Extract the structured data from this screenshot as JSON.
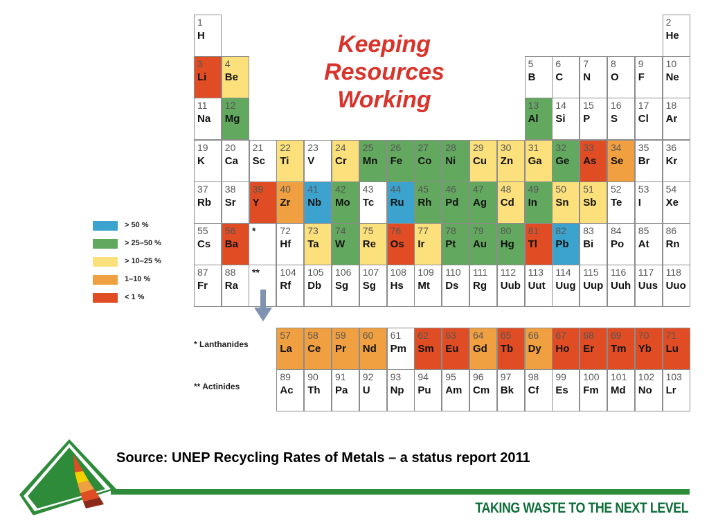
{
  "slide": {
    "title_lines": [
      "Keeping",
      "Resources",
      "Working"
    ],
    "source": "Source: UNEP Recycling Rates of Metals – a status report 2011",
    "tagline": "TAKING WASTE TO THE NEXT LEVEL"
  },
  "legend": [
    {
      "label": "> 50 %",
      "color": "#3ba3cd"
    },
    {
      "label": "> 25–50 %",
      "color": "#63a85f"
    },
    {
      "label": "> 10–25 %",
      "color": "#fbe07b"
    },
    {
      "label": "1–10 %",
      "color": "#f0a040"
    },
    {
      "label": "< 1 %",
      "color": "#e04d24"
    }
  ],
  "series_labels": {
    "lanthanides": "* Lanthanides",
    "actinides": "** Actinides"
  },
  "table_marks": {
    "lanthanide_mark": "*",
    "actinide_mark": "**"
  },
  "elements": [
    {
      "n": "1",
      "s": "H",
      "row": 1,
      "col": 1,
      "cat": null
    },
    {
      "n": "2",
      "s": "He",
      "row": 1,
      "col": 18,
      "cat": null
    },
    {
      "n": "3",
      "s": "Li",
      "row": 2,
      "col": 1,
      "cat": "lt1"
    },
    {
      "n": "4",
      "s": "Be",
      "row": 2,
      "col": 2,
      "cat": "10-25"
    },
    {
      "n": "5",
      "s": "B",
      "row": 2,
      "col": 13,
      "cat": null
    },
    {
      "n": "6",
      "s": "C",
      "row": 2,
      "col": 14,
      "cat": null
    },
    {
      "n": "7",
      "s": "N",
      "row": 2,
      "col": 15,
      "cat": null
    },
    {
      "n": "8",
      "s": "O",
      "row": 2,
      "col": 16,
      "cat": null
    },
    {
      "n": "9",
      "s": "F",
      "row": 2,
      "col": 17,
      "cat": null
    },
    {
      "n": "10",
      "s": "Ne",
      "row": 2,
      "col": 18,
      "cat": null
    },
    {
      "n": "11",
      "s": "Na",
      "row": 3,
      "col": 1,
      "cat": null
    },
    {
      "n": "12",
      "s": "Mg",
      "row": 3,
      "col": 2,
      "cat": "25-50"
    },
    {
      "n": "13",
      "s": "Al",
      "row": 3,
      "col": 13,
      "cat": "25-50"
    },
    {
      "n": "14",
      "s": "Si",
      "row": 3,
      "col": 14,
      "cat": null
    },
    {
      "n": "15",
      "s": "P",
      "row": 3,
      "col": 15,
      "cat": null
    },
    {
      "n": "16",
      "s": "S",
      "row": 3,
      "col": 16,
      "cat": null
    },
    {
      "n": "17",
      "s": "Cl",
      "row": 3,
      "col": 17,
      "cat": null
    },
    {
      "n": "18",
      "s": "Ar",
      "row": 3,
      "col": 18,
      "cat": null
    },
    {
      "n": "19",
      "s": "K",
      "row": 4,
      "col": 1,
      "cat": null
    },
    {
      "n": "20",
      "s": "Ca",
      "row": 4,
      "col": 2,
      "cat": null
    },
    {
      "n": "21",
      "s": "Sc",
      "row": 4,
      "col": 3,
      "cat": null
    },
    {
      "n": "22",
      "s": "Ti",
      "row": 4,
      "col": 4,
      "cat": "10-25"
    },
    {
      "n": "23",
      "s": "V",
      "row": 4,
      "col": 5,
      "cat": null
    },
    {
      "n": "24",
      "s": "Cr",
      "row": 4,
      "col": 6,
      "cat": "10-25"
    },
    {
      "n": "25",
      "s": "Mn",
      "row": 4,
      "col": 7,
      "cat": "25-50"
    },
    {
      "n": "26",
      "s": "Fe",
      "row": 4,
      "col": 8,
      "cat": "25-50"
    },
    {
      "n": "27",
      "s": "Co",
      "row": 4,
      "col": 9,
      "cat": "25-50"
    },
    {
      "n": "28",
      "s": "Ni",
      "row": 4,
      "col": 10,
      "cat": "25-50"
    },
    {
      "n": "29",
      "s": "Cu",
      "row": 4,
      "col": 11,
      "cat": "10-25"
    },
    {
      "n": "30",
      "s": "Zn",
      "row": 4,
      "col": 12,
      "cat": "10-25"
    },
    {
      "n": "31",
      "s": "Ga",
      "row": 4,
      "col": 13,
      "cat": "10-25"
    },
    {
      "n": "32",
      "s": "Ge",
      "row": 4,
      "col": 14,
      "cat": "25-50"
    },
    {
      "n": "33",
      "s": "As",
      "row": 4,
      "col": 15,
      "cat": "lt1"
    },
    {
      "n": "34",
      "s": "Se",
      "row": 4,
      "col": 16,
      "cat": "1-10"
    },
    {
      "n": "35",
      "s": "Br",
      "row": 4,
      "col": 17,
      "cat": null
    },
    {
      "n": "36",
      "s": "Kr",
      "row": 4,
      "col": 18,
      "cat": null
    },
    {
      "n": "37",
      "s": "Rb",
      "row": 5,
      "col": 1,
      "cat": null
    },
    {
      "n": "38",
      "s": "Sr",
      "row": 5,
      "col": 2,
      "cat": null
    },
    {
      "n": "39",
      "s": "Y",
      "row": 5,
      "col": 3,
      "cat": "lt1"
    },
    {
      "n": "40",
      "s": "Zr",
      "row": 5,
      "col": 4,
      "cat": "1-10"
    },
    {
      "n": "41",
      "s": "Nb",
      "row": 5,
      "col": 5,
      "cat": "gt50"
    },
    {
      "n": "42",
      "s": "Mo",
      "row": 5,
      "col": 6,
      "cat": "25-50"
    },
    {
      "n": "43",
      "s": "Tc",
      "row": 5,
      "col": 7,
      "cat": null
    },
    {
      "n": "44",
      "s": "Ru",
      "row": 5,
      "col": 8,
      "cat": "gt50"
    },
    {
      "n": "45",
      "s": "Rh",
      "row": 5,
      "col": 9,
      "cat": "25-50"
    },
    {
      "n": "46",
      "s": "Pd",
      "row": 5,
      "col": 10,
      "cat": "25-50"
    },
    {
      "n": "47",
      "s": "Ag",
      "row": 5,
      "col": 11,
      "cat": "25-50"
    },
    {
      "n": "48",
      "s": "Cd",
      "row": 5,
      "col": 12,
      "cat": "10-25"
    },
    {
      "n": "49",
      "s": "In",
      "row": 5,
      "col": 13,
      "cat": "25-50"
    },
    {
      "n": "50",
      "s": "Sn",
      "row": 5,
      "col": 14,
      "cat": "10-25"
    },
    {
      "n": "51",
      "s": "Sb",
      "row": 5,
      "col": 15,
      "cat": "10-25"
    },
    {
      "n": "52",
      "s": "Te",
      "row": 5,
      "col": 16,
      "cat": null
    },
    {
      "n": "53",
      "s": "I",
      "row": 5,
      "col": 17,
      "cat": null
    },
    {
      "n": "54",
      "s": "Xe",
      "row": 5,
      "col": 18,
      "cat": null
    },
    {
      "n": "55",
      "s": "Cs",
      "row": 6,
      "col": 1,
      "cat": null
    },
    {
      "n": "56",
      "s": "Ba",
      "row": 6,
      "col": 2,
      "cat": "lt1"
    },
    {
      "n": "72",
      "s": "Hf",
      "row": 6,
      "col": 4,
      "cat": null
    },
    {
      "n": "73",
      "s": "Ta",
      "row": 6,
      "col": 5,
      "cat": "10-25"
    },
    {
      "n": "74",
      "s": "W",
      "row": 6,
      "col": 6,
      "cat": "25-50"
    },
    {
      "n": "75",
      "s": "Re",
      "row": 6,
      "col": 7,
      "cat": "10-25"
    },
    {
      "n": "76",
      "s": "Os",
      "row": 6,
      "col": 8,
      "cat": "lt1"
    },
    {
      "n": "77",
      "s": "Ir",
      "row": 6,
      "col": 9,
      "cat": "10-25"
    },
    {
      "n": "78",
      "s": "Pt",
      "row": 6,
      "col": 10,
      "cat": "25-50"
    },
    {
      "n": "79",
      "s": "Au",
      "row": 6,
      "col": 11,
      "cat": "25-50"
    },
    {
      "n": "80",
      "s": "Hg",
      "row": 6,
      "col": 12,
      "cat": "25-50"
    },
    {
      "n": "81",
      "s": "Tl",
      "row": 6,
      "col": 13,
      "cat": "lt1"
    },
    {
      "n": "82",
      "s": "Pb",
      "row": 6,
      "col": 14,
      "cat": "gt50"
    },
    {
      "n": "83",
      "s": "Bi",
      "row": 6,
      "col": 15,
      "cat": null
    },
    {
      "n": "84",
      "s": "Po",
      "row": 6,
      "col": 16,
      "cat": null
    },
    {
      "n": "85",
      "s": "At",
      "row": 6,
      "col": 17,
      "cat": null
    },
    {
      "n": "86",
      "s": "Rn",
      "row": 6,
      "col": 18,
      "cat": null
    },
    {
      "n": "87",
      "s": "Fr",
      "row": 7,
      "col": 1,
      "cat": null
    },
    {
      "n": "88",
      "s": "Ra",
      "row": 7,
      "col": 2,
      "cat": null
    },
    {
      "n": "104",
      "s": "Rf",
      "row": 7,
      "col": 4,
      "cat": null
    },
    {
      "n": "105",
      "s": "Db",
      "row": 7,
      "col": 5,
      "cat": null
    },
    {
      "n": "106",
      "s": "Sg",
      "row": 7,
      "col": 6,
      "cat": null
    },
    {
      "n": "107",
      "s": "Sg",
      "row": 7,
      "col": 7,
      "cat": null
    },
    {
      "n": "108",
      "s": "Hs",
      "row": 7,
      "col": 8,
      "cat": null
    },
    {
      "n": "109",
      "s": "Mt",
      "row": 7,
      "col": 9,
      "cat": null
    },
    {
      "n": "110",
      "s": "Ds",
      "row": 7,
      "col": 10,
      "cat": null
    },
    {
      "n": "111",
      "s": "Rg",
      "row": 7,
      "col": 11,
      "cat": null
    },
    {
      "n": "112",
      "s": "Uub",
      "row": 7,
      "col": 12,
      "cat": null
    },
    {
      "n": "113",
      "s": "Uut",
      "row": 7,
      "col": 13,
      "cat": null
    },
    {
      "n": "114",
      "s": "Uug",
      "row": 7,
      "col": 14,
      "cat": null
    },
    {
      "n": "115",
      "s": "Uup",
      "row": 7,
      "col": 15,
      "cat": null
    },
    {
      "n": "116",
      "s": "Uuh",
      "row": 7,
      "col": 16,
      "cat": null
    },
    {
      "n": "117",
      "s": "Uus",
      "row": 7,
      "col": 17,
      "cat": null
    },
    {
      "n": "118",
      "s": "Uuo",
      "row": 7,
      "col": 18,
      "cat": null
    },
    {
      "n": "57",
      "s": "La",
      "row": 8,
      "col": 4,
      "cat": "1-10"
    },
    {
      "n": "58",
      "s": "Ce",
      "row": 8,
      "col": 5,
      "cat": "1-10"
    },
    {
      "n": "59",
      "s": "Pr",
      "row": 8,
      "col": 6,
      "cat": "1-10"
    },
    {
      "n": "60",
      "s": "Nd",
      "row": 8,
      "col": 7,
      "cat": "1-10"
    },
    {
      "n": "61",
      "s": "Pm",
      "row": 8,
      "col": 8,
      "cat": null
    },
    {
      "n": "62",
      "s": "Sm",
      "row": 8,
      "col": 9,
      "cat": "lt1"
    },
    {
      "n": "63",
      "s": "Eu",
      "row": 8,
      "col": 10,
      "cat": "lt1"
    },
    {
      "n": "64",
      "s": "Gd",
      "row": 8,
      "col": 11,
      "cat": "1-10"
    },
    {
      "n": "65",
      "s": "Tb",
      "row": 8,
      "col": 12,
      "cat": "lt1"
    },
    {
      "n": "66",
      "s": "Dy",
      "row": 8,
      "col": 13,
      "cat": "1-10"
    },
    {
      "n": "67",
      "s": "Ho",
      "row": 8,
      "col": 14,
      "cat": "lt1"
    },
    {
      "n": "68",
      "s": "Er",
      "row": 8,
      "col": 15,
      "cat": "lt1"
    },
    {
      "n": "69",
      "s": "Tm",
      "row": 8,
      "col": 16,
      "cat": "lt1"
    },
    {
      "n": "70",
      "s": "Yb",
      "row": 8,
      "col": 17,
      "cat": "lt1"
    },
    {
      "n": "71",
      "s": "Lu",
      "row": 8,
      "col": 18,
      "cat": "lt1"
    },
    {
      "n": "89",
      "s": "Ac",
      "row": 9,
      "col": 4,
      "cat": null
    },
    {
      "n": "90",
      "s": "Th",
      "row": 9,
      "col": 5,
      "cat": null
    },
    {
      "n": "91",
      "s": "Pa",
      "row": 9,
      "col": 6,
      "cat": null
    },
    {
      "n": "92",
      "s": "U",
      "row": 9,
      "col": 7,
      "cat": null
    },
    {
      "n": "93",
      "s": "Np",
      "row": 9,
      "col": 8,
      "cat": null
    },
    {
      "n": "94",
      "s": "Pu",
      "row": 9,
      "col": 9,
      "cat": null
    },
    {
      "n": "95",
      "s": "Am",
      "row": 9,
      "col": 10,
      "cat": null
    },
    {
      "n": "96",
      "s": "Cm",
      "row": 9,
      "col": 11,
      "cat": null
    },
    {
      "n": "97",
      "s": "Bk",
      "row": 9,
      "col": 12,
      "cat": null
    },
    {
      "n": "98",
      "s": "Cf",
      "row": 9,
      "col": 13,
      "cat": null
    },
    {
      "n": "99",
      "s": "Es",
      "row": 9,
      "col": 14,
      "cat": null
    },
    {
      "n": "100",
      "s": "Fm",
      "row": 9,
      "col": 15,
      "cat": null
    },
    {
      "n": "101",
      "s": "Md",
      "row": 9,
      "col": 16,
      "cat": null
    },
    {
      "n": "102",
      "s": "No",
      "row": 9,
      "col": 17,
      "cat": null
    },
    {
      "n": "103",
      "s": "Lr",
      "row": 9,
      "col": 18,
      "cat": null
    }
  ],
  "icons": {
    "logo": "pyramid-logo-icon",
    "arrow": "down-arrow-icon"
  }
}
